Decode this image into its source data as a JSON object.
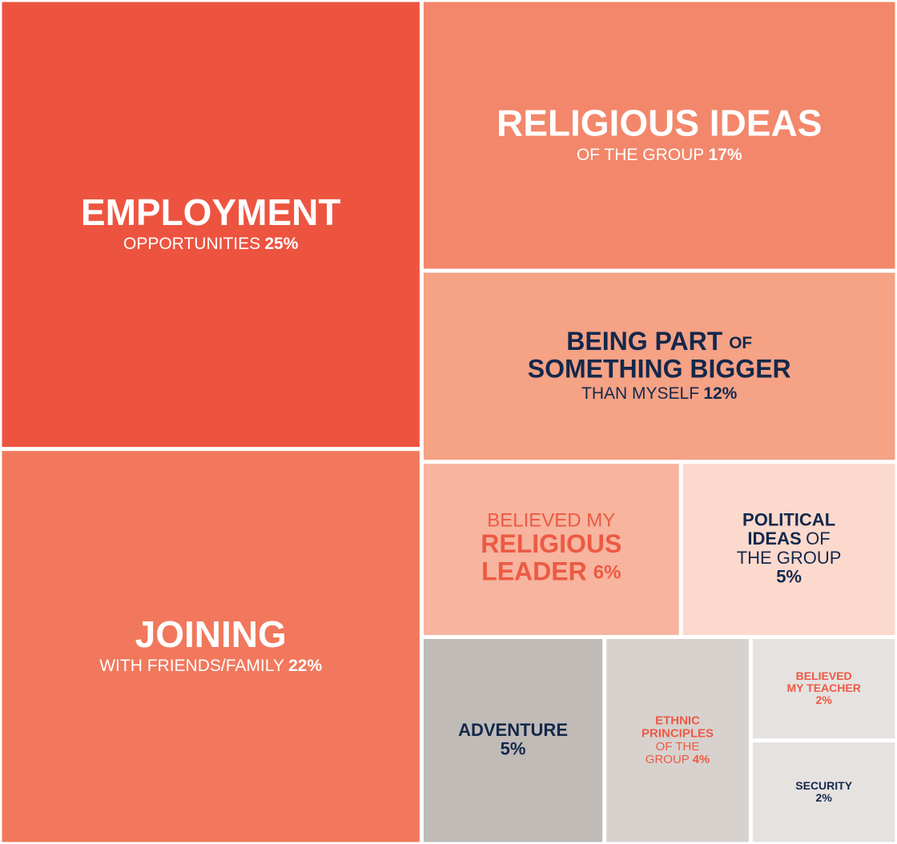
{
  "chart_data": {
    "type": "treemap",
    "items": [
      {
        "lines": [
          {
            "head": true,
            "segments": [
              {
                "text": "EMPLOYMENT",
                "bold": true
              }
            ]
          },
          {
            "head": false,
            "segments": [
              {
                "text": "OPPORTUNITIES",
                "bold": false
              }
            ]
          }
        ],
        "value_line": 1,
        "value": 25,
        "value_label": "25%",
        "color": "#ed5440",
        "text_color": "#ffffff"
      },
      {
        "lines": [
          {
            "head": true,
            "segments": [
              {
                "text": "RELIGIOUS IDEAS",
                "bold": true
              }
            ]
          },
          {
            "head": false,
            "segments": [
              {
                "text": "OF THE GROUP",
                "bold": false
              }
            ]
          }
        ],
        "value_line": 1,
        "value": 17,
        "value_label": "17%",
        "color": "#f3876b",
        "text_color": "#ffffff"
      },
      {
        "lines": [
          {
            "head": true,
            "segments": [
              {
                "text": "JOINING",
                "bold": true
              }
            ]
          },
          {
            "head": false,
            "segments": [
              {
                "text": "WITH FRIENDS/FAMILY",
                "bold": false
              }
            ]
          }
        ],
        "value_line": 1,
        "value": 22,
        "value_label": "22%",
        "color": "#f1785c",
        "text_color": "#ffffff"
      },
      {
        "lines": [
          {
            "head": true,
            "segments": [
              {
                "text": "BEING PART",
                "bold": true
              },
              {
                "text": "OF",
                "bold": true
              }
            ]
          },
          {
            "head": true,
            "segments": [
              {
                "text": "SOMETHING BIGGER",
                "bold": true
              }
            ]
          },
          {
            "head": false,
            "segments": [
              {
                "text": "THAN MYSELF",
                "bold": false
              }
            ]
          }
        ],
        "value_line": 2,
        "value": 12,
        "value_label": "12%",
        "color": "#f5a285",
        "text_color": "#14284b"
      },
      {
        "lines": [
          {
            "head": false,
            "segments": [
              {
                "text": "BELIEVED MY",
                "bold": false
              }
            ]
          },
          {
            "head": true,
            "segments": [
              {
                "text": "RELIGIOUS",
                "bold": true
              }
            ]
          },
          {
            "head": true,
            "segments": [
              {
                "text": "LEADER",
                "bold": true
              }
            ]
          }
        ],
        "value_line": 2,
        "value": 6,
        "value_label": "6%",
        "color": "#f7b49e",
        "text_color": "#ec5a44"
      },
      {
        "lines": [
          {
            "head": true,
            "segments": [
              {
                "text": "POLITICAL",
                "bold": true
              }
            ]
          },
          {
            "head": true,
            "segments": [
              {
                "text": "IDEAS",
                "bold": true
              },
              {
                "text": "OF",
                "bold": false
              }
            ]
          },
          {
            "head": true,
            "segments": [
              {
                "text": "THE GROUP",
                "bold": false
              }
            ]
          }
        ],
        "value_line": 3,
        "value": 5,
        "value_label": "5%",
        "color": "#fcd9cd",
        "text_color": "#14284b"
      },
      {
        "lines": [
          {
            "head": true,
            "segments": [
              {
                "text": "ADVENTURE",
                "bold": true
              }
            ]
          }
        ],
        "value_line": 1,
        "value": 5,
        "value_label": "5%",
        "color": "#c0bbb7",
        "text_color": "#14284b"
      },
      {
        "lines": [
          {
            "head": true,
            "segments": [
              {
                "text": "ETHNIC",
                "bold": true
              }
            ]
          },
          {
            "head": true,
            "segments": [
              {
                "text": "PRINCIPLES",
                "bold": true
              }
            ]
          },
          {
            "head": true,
            "segments": [
              {
                "text": "OF THE",
                "bold": false
              }
            ]
          },
          {
            "head": true,
            "segments": [
              {
                "text": "GROUP",
                "bold": false
              }
            ]
          }
        ],
        "value_line": 3,
        "value": 4,
        "value_label": "4%",
        "color": "#d8d2cf",
        "text_color": "#ec5a44"
      },
      {
        "lines": [
          {
            "head": true,
            "segments": [
              {
                "text": "BELIEVED",
                "bold": true
              }
            ]
          },
          {
            "head": true,
            "segments": [
              {
                "text": "MY TEACHER",
                "bold": true
              }
            ]
          }
        ],
        "value_line": 2,
        "value": 2,
        "value_label": "2%",
        "color": "#e6e2e0",
        "text_color": "#ec5a44"
      },
      {
        "lines": [
          {
            "head": true,
            "segments": [
              {
                "text": "SECURITY",
                "bold": true
              }
            ]
          }
        ],
        "value_line": 1,
        "value": 2,
        "value_label": "2%",
        "color": "#e6e2e0",
        "text_color": "#14284b"
      }
    ]
  }
}
